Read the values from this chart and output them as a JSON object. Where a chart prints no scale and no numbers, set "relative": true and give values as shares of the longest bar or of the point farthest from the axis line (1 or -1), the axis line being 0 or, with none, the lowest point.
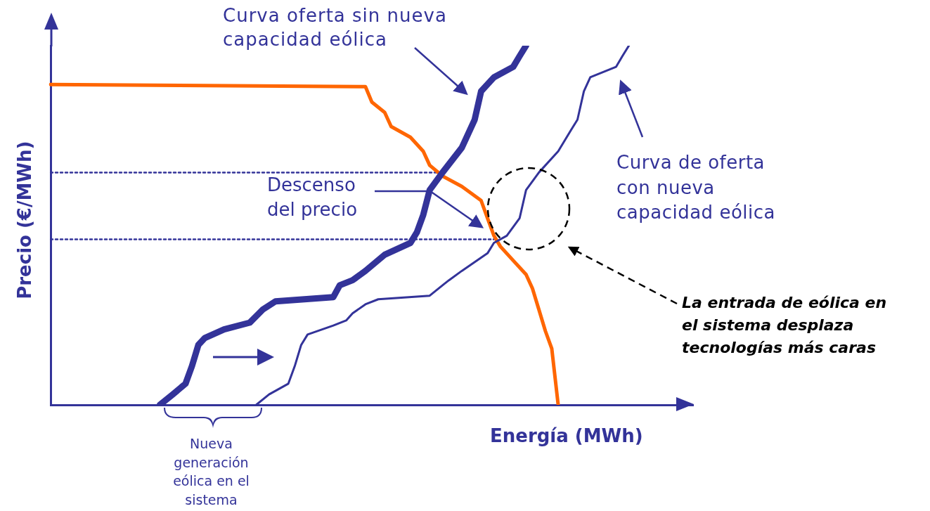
{
  "chart_data": {
    "type": "line",
    "relative": true,
    "xlabel": "Energía (MWh)",
    "ylabel": "Precio (€/MWh)",
    "grid": false,
    "legend": false,
    "marker": "none",
    "line_style": "solid",
    "categories": [
      null,
      null,
      null,
      null,
      null,
      null,
      null,
      null,
      null,
      null,
      null,
      null,
      null,
      null,
      null,
      null,
      null,
      null,
      null,
      null,
      null,
      null,
      null,
      null,
      null,
      null,
      null,
      null,
      null,
      null,
      null,
      null,
      null,
      null,
      null,
      null,
      null,
      null,
      null,
      null,
      null,
      null,
      null,
      null,
      null,
      null,
      null,
      null,
      null,
      null,
      null,
      null,
      null,
      null,
      null,
      null,
      null,
      null,
      null,
      null,
      null,
      null,
      null,
      null,
      null,
      null,
      null,
      null,
      null,
      null,
      null,
      null,
      null,
      null,
      null,
      null,
      null,
      null,
      null,
      null,
      null,
      null,
      null,
      null,
      null,
      null,
      null,
      null,
      null,
      null,
      null,
      null,
      null,
      null,
      null,
      null,
      null,
      null,
      null,
      null,
      null
    ],
    "series": [
      {
        "name": "Curva oferta sin nueva capacidad eólica",
        "color": "#333399",
        "values": [
          null,
          null,
          null,
          null,
          null,
          null,
          null,
          null,
          null,
          null,
          null,
          null,
          null,
          null,
          null,
          null,
          null,
          0,
          null,
          0.029,
          null,
          0.059,
          0.108,
          0.167,
          0.186,
          null,
          null,
          0.21,
          null,
          null,
          null,
          0.229,
          null,
          0.265,
          null,
          0.288,
          null,
          null,
          null,
          null,
          null,
          null,
          null,
          null,
          0.3,
          0.333,
          null,
          0.347,
          null,
          0.373,
          null,
          null,
          0.418,
          null,
          null,
          null,
          0.451,
          0.48,
          0.529,
          0.598,
          null,
          0.647,
          null,
          null,
          0.716,
          null,
          0.794,
          0.873,
          null,
          0.912,
          null,
          null,
          0.941,
          0.971,
          1,
          null,
          null,
          null,
          null,
          null,
          null,
          null,
          null,
          null,
          null,
          null,
          null,
          null,
          null,
          null,
          null,
          null,
          null,
          null,
          null,
          null,
          null,
          null,
          null,
          null,
          null
        ]
      },
      {
        "name": "Curva de oferta con nueva capacidad eólica",
        "color": "#333399",
        "values": [
          null,
          null,
          null,
          null,
          null,
          null,
          null,
          null,
          null,
          null,
          null,
          null,
          null,
          null,
          null,
          null,
          null,
          null,
          null,
          null,
          null,
          null,
          null,
          null,
          null,
          null,
          null,
          null,
          null,
          null,
          null,
          null,
          0,
          null,
          0.029,
          null,
          null,
          0.059,
          0.108,
          0.167,
          0.196,
          null,
          null,
          null,
          0.221,
          null,
          0.235,
          0.255,
          null,
          0.28,
          null,
          0.294,
          null,
          null,
          null,
          null,
          null,
          null,
          null,
          0.304,
          null,
          0.333,
          0.347,
          null,
          0.373,
          null,
          null,
          null,
          0.422,
          0.451,
          null,
          0.471,
          null,
          0.52,
          0.598,
          null,
          0.647,
          null,
          null,
          0.706,
          null,
          0.765,
          0.794,
          0.873,
          0.912,
          null,
          null,
          null,
          0.941,
          0.971,
          1,
          null,
          null,
          null,
          null,
          null,
          null,
          null,
          null,
          null,
          null
        ]
      },
      {
        "color": "#ff6600",
        "values": [
          0.892,
          null,
          null,
          null,
          null,
          null,
          null,
          null,
          null,
          null,
          null,
          null,
          null,
          null,
          null,
          null,
          null,
          null,
          null,
          null,
          null,
          null,
          null,
          null,
          null,
          null,
          null,
          null,
          null,
          null,
          null,
          null,
          null,
          null,
          null,
          null,
          null,
          null,
          null,
          null,
          null,
          null,
          null,
          null,
          null,
          null,
          null,
          null,
          null,
          0.886,
          0.843,
          null,
          0.814,
          0.775,
          null,
          null,
          0.745,
          null,
          0.706,
          0.667,
          null,
          0.637,
          null,
          null,
          0.608,
          null,
          null,
          0.569,
          0.52,
          0.471,
          0.441,
          null,
          0.402,
          null,
          0.363,
          0.324,
          0.265,
          0.206,
          0.157,
          0,
          null,
          null,
          null,
          null,
          null,
          null,
          null,
          null,
          null,
          null,
          null,
          null,
          null,
          null,
          null,
          null,
          null,
          null,
          null,
          null,
          null
        ]
      },
      {
        "color": "#333399",
        "line_style": "dotted",
        "values": [
          0.647,
          null,
          null,
          null,
          null,
          null,
          null,
          null,
          null,
          null,
          null,
          null,
          null,
          null,
          null,
          null,
          null,
          null,
          null,
          null,
          null,
          null,
          null,
          null,
          null,
          null,
          null,
          null,
          null,
          null,
          null,
          null,
          null,
          null,
          null,
          null,
          null,
          null,
          null,
          null,
          null,
          null,
          null,
          null,
          null,
          null,
          null,
          null,
          null,
          null,
          null,
          null,
          null,
          null,
          null,
          null,
          null,
          null,
          null,
          null,
          null,
          0.647,
          null,
          null,
          null,
          null,
          null,
          null,
          null,
          null,
          null,
          null,
          null,
          null,
          null,
          null,
          null,
          null,
          null,
          null,
          null,
          null,
          null,
          null,
          null,
          null,
          null,
          null,
          null,
          null,
          null,
          null,
          null,
          null,
          null,
          null,
          null,
          null,
          null,
          null,
          null
        ]
      },
      {
        "color": "#333399",
        "line_style": "dotted",
        "values": [
          0.461,
          null,
          null,
          null,
          null,
          null,
          null,
          null,
          null,
          null,
          null,
          null,
          null,
          null,
          null,
          null,
          null,
          null,
          null,
          null,
          null,
          null,
          null,
          null,
          null,
          null,
          null,
          null,
          null,
          null,
          null,
          null,
          null,
          null,
          null,
          null,
          null,
          null,
          null,
          null,
          null,
          null,
          null,
          null,
          null,
          null,
          null,
          null,
          null,
          null,
          null,
          null,
          null,
          null,
          null,
          null,
          null,
          null,
          null,
          null,
          null,
          null,
          null,
          null,
          null,
          null,
          null,
          null,
          null,
          0.461,
          null,
          null,
          null,
          null,
          null,
          null,
          null,
          null,
          null,
          null,
          null,
          null,
          null,
          null,
          null,
          null,
          null,
          null,
          null,
          null,
          null,
          null,
          null,
          null,
          null,
          null,
          null,
          null,
          null,
          null,
          null
        ]
      }
    ],
    "annotations": [
      "Descenso del precio",
      "La entrada de eólica en el sistema desplaza tecnologías más caras",
      "Nueva generación eólica en el sistema"
    ]
  }
}
